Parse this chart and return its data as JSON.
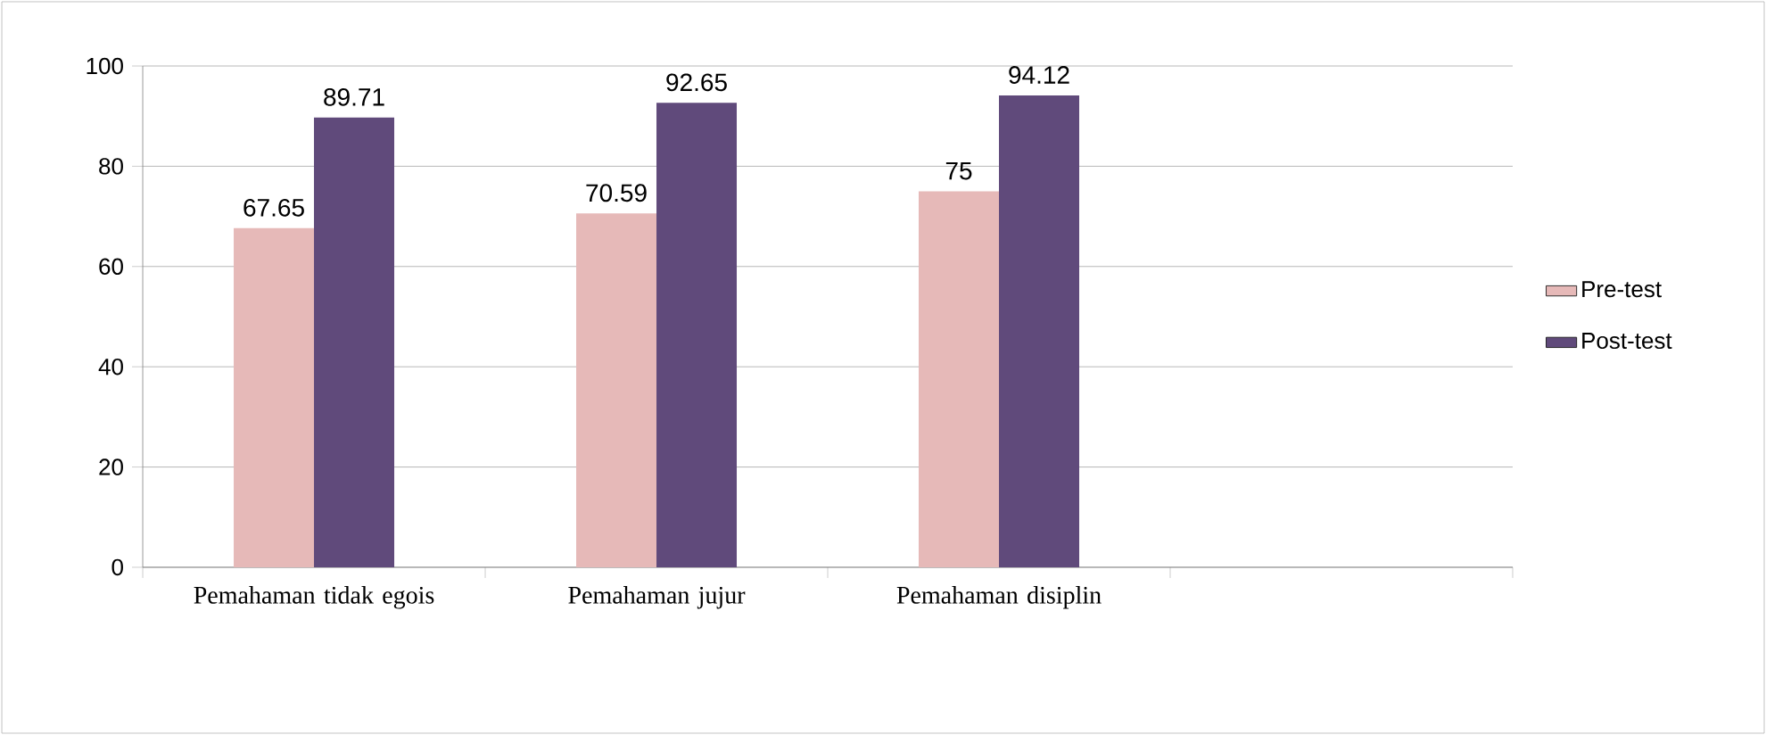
{
  "chart_data": {
    "type": "bar",
    "categories": [
      "Pemahaman tidak egois",
      "Pemahaman jujur",
      "Pemahaman disiplin",
      null
    ],
    "series": [
      {
        "name": "Pre-test",
        "color": "#e6b9b8",
        "values": [
          67.65,
          70.59,
          75,
          null
        ]
      },
      {
        "name": "Post-test",
        "color": "#604a7b",
        "values": [
          89.71,
          92.65,
          94.12,
          null
        ]
      }
    ],
    "ylim": [
      0,
      100
    ],
    "yticks": [
      0,
      20,
      40,
      60,
      80,
      100
    ],
    "grid": "y",
    "legend": "right",
    "data_labels": true
  }
}
